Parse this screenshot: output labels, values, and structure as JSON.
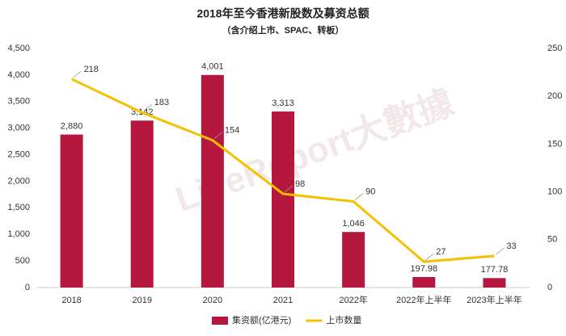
{
  "chart_data": {
    "type": "bar",
    "title": "2018年至今香港新股数及募资总额",
    "subtitle": "（含介绍上市、SPAC、转板）",
    "watermark": "LiveReport大數據",
    "categories": [
      "2018",
      "2019",
      "2020",
      "2021",
      "2022年",
      "2022年上半年",
      "2023年上半年"
    ],
    "series": [
      {
        "name": "集资额(亿港元)",
        "color": "#b5173f",
        "type": "bar",
        "values": [
          2880,
          3142,
          4001,
          3313,
          1046,
          197.98,
          177.78
        ],
        "value_labels": [
          "2,880",
          "3,142",
          "4,001",
          "3,313",
          "1,046",
          "197.98",
          "177.78"
        ]
      },
      {
        "name": "上市数量",
        "color": "#f5c000",
        "type": "line",
        "axis": "y2",
        "values": [
          218,
          183,
          154,
          98,
          90,
          27,
          33
        ]
      }
    ],
    "ylim": [
      0,
      4500
    ],
    "yticks": [
      0,
      500,
      {
        "value": 1000,
        "label": "1,000"
      },
      {
        "value": 1500,
        "label": "1,500"
      },
      {
        "value": 2000,
        "label": "2,000"
      },
      {
        "value": 2500,
        "label": "2,500"
      },
      {
        "value": 3000,
        "label": "3,000"
      },
      {
        "value": 3500,
        "label": "3,500"
      },
      {
        "value": 4000,
        "label": "4,000"
      },
      {
        "value": 4500,
        "label": "4,500"
      }
    ],
    "y2lim": [
      0,
      250
    ],
    "y2ticks": [
      0,
      50,
      100,
      150,
      200,
      250
    ],
    "grid": false,
    "legend": "bottom"
  }
}
